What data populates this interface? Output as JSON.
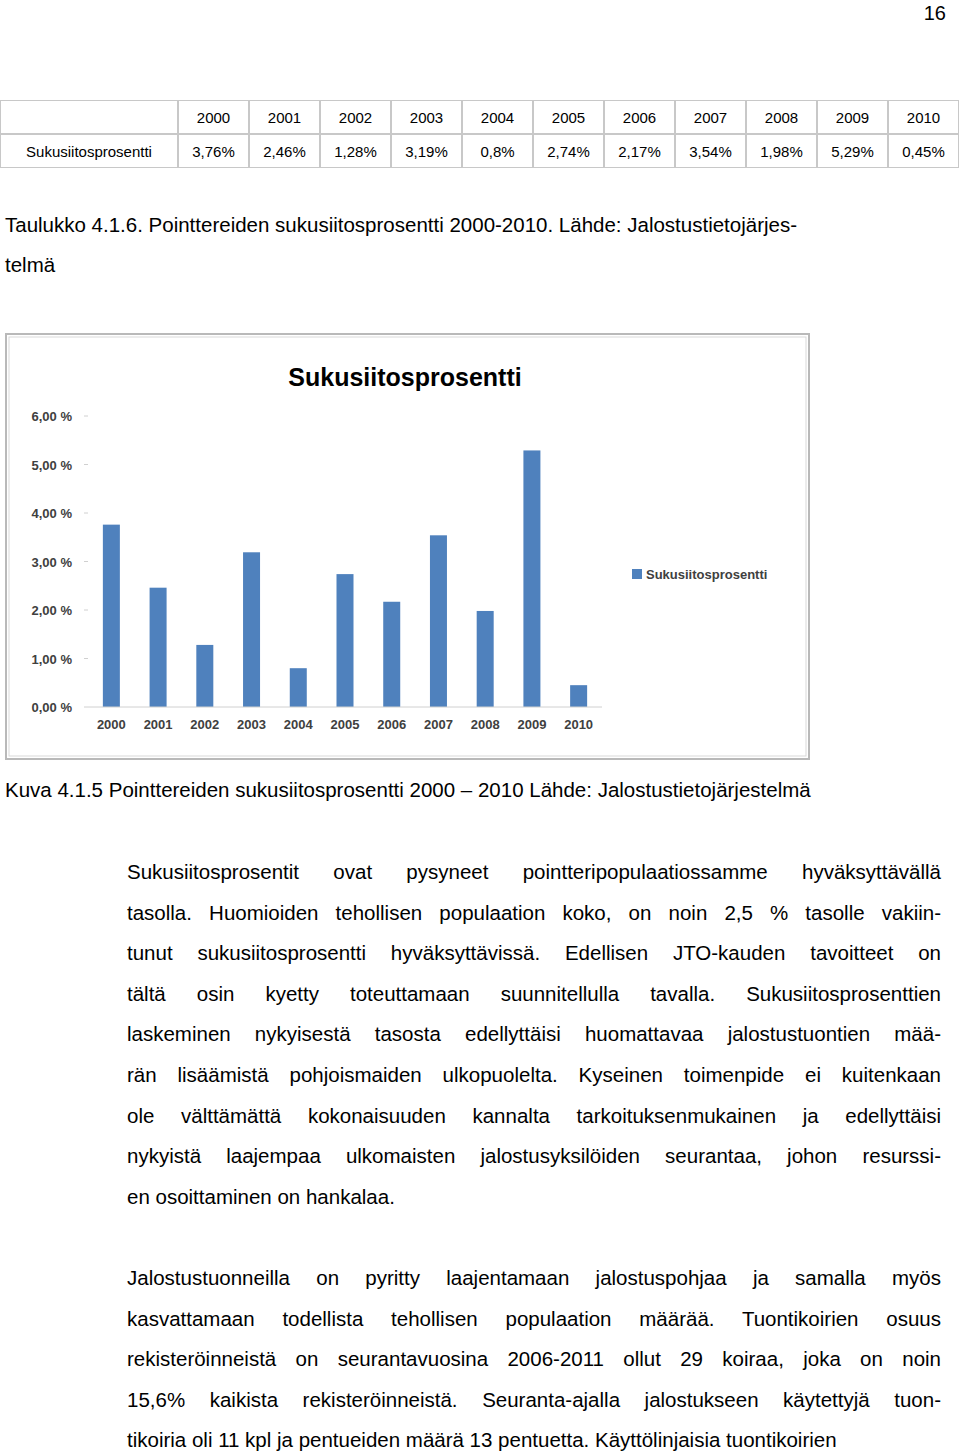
{
  "page_number": "16",
  "table": {
    "columns": [
      "2000",
      "2001",
      "2002",
      "2003",
      "2004",
      "2005",
      "2006",
      "2007",
      "2008",
      "2009",
      "2010"
    ],
    "rows": [
      {
        "label": "Sukusiitosprosentti",
        "cells": [
          "3,76%",
          "2,46%",
          "1,28%",
          "3,19%",
          "0,8%",
          "2,74%",
          "2,17%",
          "3,54%",
          "1,98%",
          "5,29%",
          "0,45%"
        ]
      }
    ]
  },
  "table_caption": [
    "Taulukko 4.1.6. Pointtereiden sukusiitosprosentti 2000-2010. Lähde: Jalostustietojärjes-",
    "telmä"
  ],
  "chart_data": {
    "type": "bar",
    "title": "Sukusiitosprosentti",
    "categories": [
      "2000",
      "2001",
      "2002",
      "2003",
      "2004",
      "2005",
      "2006",
      "2007",
      "2008",
      "2009",
      "2010"
    ],
    "series": [
      {
        "name": "Sukusiitosprosentti",
        "color": "#4f81bd",
        "values": [
          3.76,
          2.46,
          1.28,
          3.19,
          0.8,
          2.74,
          2.17,
          3.54,
          1.98,
          5.29,
          0.45
        ]
      }
    ],
    "ylim": [
      0,
      6
    ],
    "yticks": [
      {
        "value": 0,
        "label": "0,00 %"
      },
      {
        "value": 1,
        "label": "1,00 %"
      },
      {
        "value": 2,
        "label": "2,00 %"
      },
      {
        "value": 3,
        "label": "3,00 %"
      },
      {
        "value": 4,
        "label": "4,00 %"
      },
      {
        "value": 5,
        "label": "5,00 %"
      },
      {
        "value": 6,
        "label": "6,00 %"
      }
    ],
    "grid": false,
    "legend": "right"
  },
  "figure_caption": "Kuva 4.1.5 Pointtereiden sukusiitosprosentti 2000 – 2010 Lähde: Jalostustietojärjestelmä",
  "paragraphs": [
    [
      "Sukusiitosprosentit ovat pysyneet pointteripopulaatiossamme hyväksyttävällä",
      "tasolla. Huomioiden tehollisen populaation koko, on noin 2,5 % tasolle vakiin-",
      "tunut sukusiitosprosentti hyväksyttävissä. Edellisen JTO-kauden tavoitteet on",
      "tältä osin kyetty toteuttamaan suunnitellulla tavalla. Sukusiitosprosenttien",
      "laskeminen nykyisestä tasosta edellyttäisi huomattavaa jalostustuontien mää-",
      "rän lisäämistä pohjoismaiden ulkopuolelta. Kyseinen toimenpide ei kuitenkaan",
      "ole välttämättä kokonaisuuden kannalta tarkoituksenmukainen ja edellyttäisi",
      "nykyistä laajempaa ulkomaisten jalostusyksilöiden seurantaa, johon resurssi-",
      "en osoittaminen on hankalaa."
    ],
    [
      "Jalostustuonneilla on pyritty laajentamaan jalostuspohjaa ja samalla myös",
      "kasvattamaan todellista tehollisen populaation määrää. Tuontikoirien osuus",
      "rekisteröinneistä on seurantavuosina 2006-2011 ollut 29 koiraa, joka on noin",
      "15,6% kaikista rekisteröinneistä. Seuranta-ajalla jalostukseen käytettyjä tuon-",
      "tikoiria oli 11 kpl ja pentueiden määrä 13 pentuetta. Käyttölinjaisia tuontikoirien"
    ]
  ]
}
